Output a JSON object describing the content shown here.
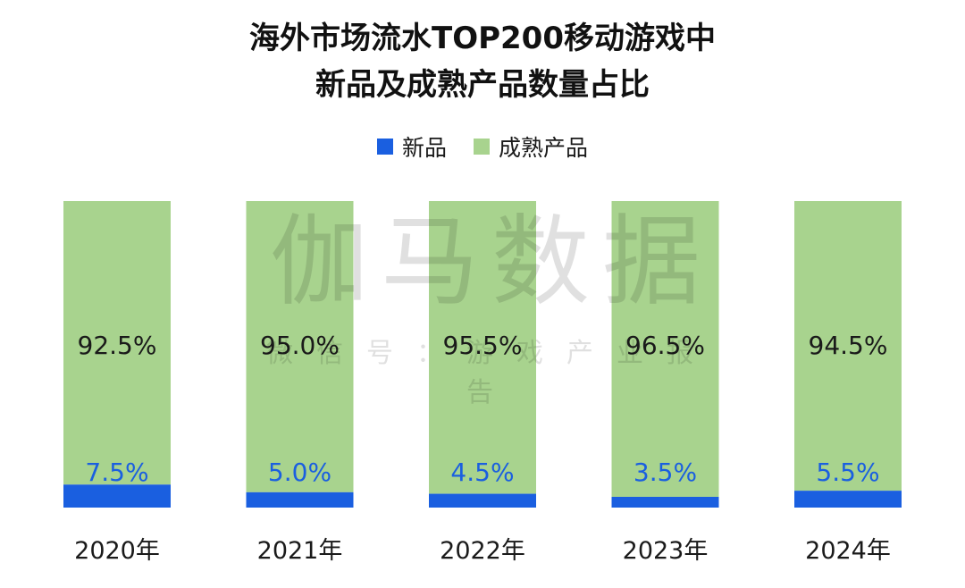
{
  "title_line1": "海外市场流水TOP200移动游戏中",
  "title_line2": "新品及成熟产品数量占比",
  "watermark": {
    "main": "伽马数据",
    "sub": "微信号：游戏产业报告"
  },
  "colors": {
    "new": "#1a5fe0",
    "mature": "#a8d38e",
    "label_new": "#1a5fe0",
    "label_mature": "#1a1a1a"
  },
  "chart_data": {
    "type": "bar",
    "stacked": true,
    "percent": true,
    "title": "海外市场流水TOP200移动游戏中新品及成熟产品数量占比",
    "categories": [
      "2020年",
      "2021年",
      "2022年",
      "2023年",
      "2024年"
    ],
    "series": [
      {
        "name": "新品",
        "values": [
          7.5,
          5.0,
          4.5,
          3.5,
          5.5
        ],
        "labels": [
          "7.5%",
          "5.0%",
          "4.5%",
          "3.5%",
          "5.5%"
        ]
      },
      {
        "name": "成熟产品",
        "values": [
          92.5,
          95.0,
          95.5,
          96.5,
          94.5
        ],
        "labels": [
          "92.5%",
          "95.0%",
          "95.5%",
          "96.5%",
          "94.5%"
        ]
      }
    ],
    "ylim": [
      0,
      100
    ],
    "legend": "top-center",
    "grid": false,
    "xlabel": "",
    "ylabel": ""
  }
}
